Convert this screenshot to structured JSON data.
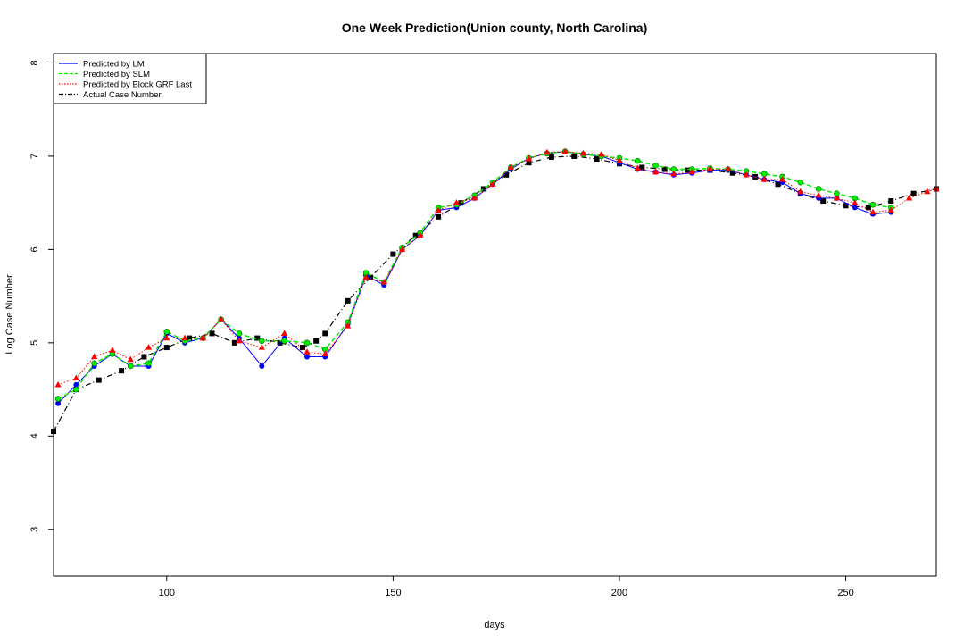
{
  "chart_data": {
    "type": "line",
    "title": "One Week Prediction(Union county, North Carolina)",
    "xlabel": "days",
    "ylabel": "Log Case Number",
    "xlim": [
      75,
      270
    ],
    "ylim": [
      2.5,
      8.1
    ],
    "x_ticks": [
      100,
      150,
      200,
      250
    ],
    "y_ticks": [
      3,
      4,
      5,
      6,
      7,
      8
    ],
    "x_tick_labels": [
      "100",
      "150",
      "200",
      "250"
    ],
    "y_tick_labels": [
      "3",
      "4",
      "5",
      "6",
      "7",
      "8"
    ],
    "grid": false,
    "legend": {
      "position": "top-left",
      "entries": [
        "Predicted by LM",
        "Predicted by SLM",
        "Predicted by Block GRF Last",
        "Actual Case Number"
      ]
    },
    "colors": {
      "lm": "#0000ff",
      "slm": "#00ee00",
      "grf": "#ff0000",
      "actual": "#000000"
    },
    "series": [
      {
        "name": "Actual Case Number",
        "x": [
          75,
          80,
          85,
          90,
          95,
          100,
          105,
          110,
          115,
          120,
          125,
          130,
          133,
          135,
          140,
          145,
          150,
          155,
          160,
          165,
          170,
          175,
          180,
          185,
          190,
          195,
          200,
          205,
          210,
          215,
          220,
          225,
          230,
          235,
          240,
          245,
          250,
          255,
          260,
          265,
          270
        ],
        "y": [
          4.05,
          4.5,
          4.6,
          4.7,
          4.85,
          4.95,
          5.05,
          5.1,
          5.0,
          5.05,
          5.0,
          4.95,
          5.02,
          5.1,
          5.45,
          5.7,
          5.95,
          6.15,
          6.35,
          6.5,
          6.65,
          6.8,
          6.93,
          6.99,
          7.0,
          6.97,
          6.92,
          6.88,
          6.86,
          6.85,
          6.85,
          6.82,
          6.78,
          6.7,
          6.6,
          6.52,
          6.47,
          6.45,
          6.52,
          6.6,
          6.65
        ]
      },
      {
        "name": "Predicted by LM",
        "x": [
          76,
          80,
          84,
          88,
          92,
          96,
          100,
          104,
          108,
          112,
          116,
          121,
          126,
          131,
          135,
          140,
          144,
          148,
          152,
          156,
          160,
          164,
          168,
          172,
          176,
          180,
          184,
          188,
          192,
          196,
          200,
          204,
          208,
          212,
          216,
          220,
          224,
          228,
          232,
          236,
          240,
          244,
          248,
          252,
          256,
          260
        ],
        "y": [
          4.35,
          4.55,
          4.75,
          4.88,
          4.75,
          4.75,
          5.1,
          5.0,
          5.05,
          5.25,
          5.05,
          4.75,
          5.05,
          4.85,
          4.85,
          5.2,
          5.72,
          5.62,
          6.0,
          6.15,
          6.42,
          6.45,
          6.55,
          6.7,
          6.86,
          6.98,
          7.03,
          7.05,
          7.02,
          7.0,
          6.93,
          6.86,
          6.83,
          6.8,
          6.82,
          6.85,
          6.85,
          6.8,
          6.75,
          6.72,
          6.6,
          6.55,
          6.55,
          6.45,
          6.38,
          6.4
        ]
      },
      {
        "name": "Predicted by SLM",
        "x": [
          76,
          80,
          84,
          88,
          92,
          96,
          100,
          104,
          108,
          112,
          116,
          121,
          126,
          131,
          135,
          140,
          144,
          148,
          152,
          156,
          160,
          164,
          168,
          172,
          176,
          180,
          184,
          188,
          192,
          196,
          200,
          204,
          208,
          212,
          216,
          220,
          224,
          228,
          232,
          236,
          240,
          244,
          248,
          252,
          256,
          260
        ],
        "y": [
          4.4,
          4.5,
          4.78,
          4.88,
          4.75,
          4.78,
          5.12,
          5.02,
          5.05,
          5.25,
          5.1,
          5.02,
          5.02,
          5.0,
          4.93,
          5.22,
          5.75,
          5.65,
          6.02,
          6.18,
          6.45,
          6.48,
          6.58,
          6.72,
          6.88,
          6.98,
          7.03,
          7.05,
          7.02,
          7.0,
          6.98,
          6.95,
          6.9,
          6.86,
          6.86,
          6.87,
          6.86,
          6.84,
          6.81,
          6.78,
          6.72,
          6.65,
          6.6,
          6.55,
          6.48,
          6.45
        ]
      },
      {
        "name": "Predicted by Block GRF Last",
        "x": [
          76,
          80,
          84,
          88,
          92,
          96,
          100,
          104,
          108,
          112,
          116,
          121,
          126,
          131,
          135,
          140,
          144,
          148,
          152,
          156,
          160,
          164,
          168,
          172,
          176,
          180,
          184,
          188,
          192,
          196,
          200,
          204,
          208,
          212,
          216,
          220,
          224,
          228,
          232,
          236,
          240,
          244,
          248,
          252,
          256,
          260,
          264,
          268,
          270
        ],
        "y": [
          4.55,
          4.62,
          4.85,
          4.92,
          4.82,
          4.95,
          5.05,
          5.05,
          5.05,
          5.25,
          5.02,
          4.95,
          5.1,
          4.9,
          4.88,
          5.18,
          5.7,
          5.65,
          6.0,
          6.15,
          6.42,
          6.5,
          6.55,
          6.7,
          6.88,
          6.97,
          7.04,
          7.05,
          7.03,
          7.02,
          6.95,
          6.87,
          6.83,
          6.81,
          6.83,
          6.86,
          6.86,
          6.8,
          6.75,
          6.75,
          6.62,
          6.58,
          6.55,
          6.5,
          6.4,
          6.42,
          6.55,
          6.62,
          6.65
        ]
      }
    ]
  }
}
